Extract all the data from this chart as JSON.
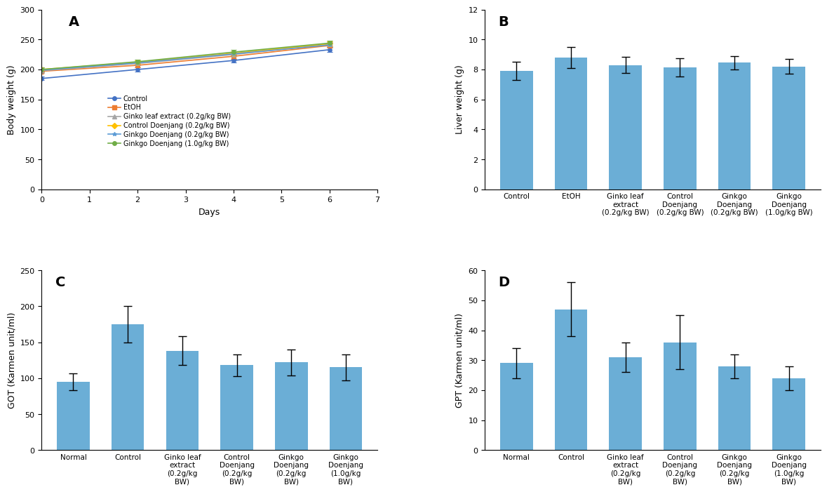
{
  "panel_A": {
    "label": "A",
    "days": [
      0,
      2,
      4,
      6
    ],
    "series": [
      {
        "name": "Control",
        "color": "#4472C4",
        "marker": "o",
        "values": [
          185,
          200,
          215,
          233
        ],
        "errors": [
          3,
          3,
          3,
          4
        ]
      },
      {
        "name": "EtOH",
        "color": "#ED7D31",
        "marker": "s",
        "values": [
          197,
          207,
          222,
          240
        ],
        "errors": [
          3,
          3,
          4,
          4
        ]
      },
      {
        "name": "Ginko leaf extract (0.2g/kg BW)",
        "color": "#A5A5A5",
        "marker": "^",
        "values": [
          198,
          210,
          225,
          242
        ],
        "errors": [
          3,
          3,
          3,
          4
        ]
      },
      {
        "name": "Control Doenjang (0.2g/kg BW)",
        "color": "#FFC000",
        "marker": "D",
        "values": [
          200,
          212,
          227,
          243
        ],
        "errors": [
          3,
          3,
          4,
          4
        ]
      },
      {
        "name": "Ginkgo Doenjang (0.2g/kg BW)",
        "color": "#5B9BD5",
        "marker": "*",
        "values": [
          199,
          211,
          226,
          241
        ],
        "errors": [
          3,
          3,
          3,
          4
        ]
      },
      {
        "name": "Ginkgo Doenjang (1.0g/kg BW)",
        "color": "#70AD47",
        "marker": "o",
        "values": [
          200,
          213,
          229,
          244
        ],
        "errors": [
          3,
          3,
          4,
          4
        ]
      }
    ],
    "xlabel": "Days",
    "ylabel": "Body weight (g)",
    "ylim": [
      0,
      300
    ],
    "yticks": [
      0,
      50,
      100,
      150,
      200,
      250,
      300
    ],
    "xlim": [
      0,
      7
    ],
    "xticks": [
      0,
      1,
      2,
      3,
      4,
      5,
      6,
      7
    ]
  },
  "panel_B": {
    "label": "B",
    "categories": [
      "Control",
      "EtOH",
      "Ginko leaf\nextract\n(0.2g/kg BW)",
      "Control\nDoenjang\n(0.2g/kg BW)",
      "Ginkgo\nDoenjang\n(0.2g/kg BW)",
      "Ginkgo\nDoenjang\n(1.0g/kg BW)"
    ],
    "values": [
      7.9,
      8.8,
      8.3,
      8.15,
      8.45,
      8.2
    ],
    "errors": [
      0.6,
      0.7,
      0.55,
      0.6,
      0.45,
      0.5
    ],
    "bar_color": "#6BAED6",
    "ylabel": "Liver weight (g)",
    "ylim": [
      0,
      12
    ],
    "yticks": [
      0,
      2,
      4,
      6,
      8,
      10,
      12
    ]
  },
  "panel_C": {
    "label": "C",
    "categories": [
      "Normal",
      "Control",
      "Ginko leaf\nextract\n(0.2g/kg\nBW)",
      "Control\nDoenjang\n(0.2g/kg\nBW)",
      "Ginkgo\nDoenjang\n(0.2g/kg\nBW)",
      "Ginkgo\nDoenjang\n(1.0g/kg\nBW)"
    ],
    "values": [
      95,
      175,
      138,
      118,
      122,
      115
    ],
    "errors": [
      12,
      25,
      20,
      15,
      18,
      18
    ],
    "bar_color": "#6BAED6",
    "ylabel": "GOT (Karmen unit/ml)",
    "ylim": [
      0,
      250
    ],
    "yticks": [
      0,
      50,
      100,
      150,
      200,
      250
    ]
  },
  "panel_D": {
    "label": "D",
    "categories": [
      "Normal",
      "Control",
      "Ginko leaf\nextract\n(0.2g/kg\nBW)",
      "Control\nDoenjang\n(0.2g/kg\nBW)",
      "Ginkgo\nDoenjang\n(0.2g/kg\nBW)",
      "Ginkgo\nDoenjang\n(1.0g/kg\nBW)"
    ],
    "values": [
      29,
      47,
      31,
      36,
      28,
      24
    ],
    "errors": [
      5,
      9,
      5,
      9,
      4,
      4
    ],
    "bar_color": "#6BAED6",
    "ylabel": "GPT (Karmen unit/ml)",
    "ylim": [
      0,
      60
    ],
    "yticks": [
      0,
      10,
      20,
      30,
      40,
      50,
      60
    ]
  },
  "background_color": "#ffffff"
}
